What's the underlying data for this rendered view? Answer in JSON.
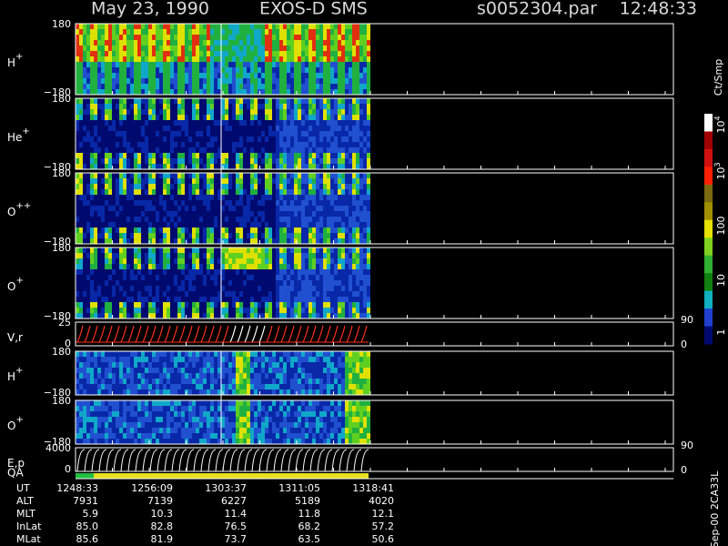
{
  "header": {
    "date": "May 23, 1990",
    "instrument": "EXOS-D SMS",
    "file": "s0052304.par",
    "time": "12:48:33"
  },
  "panels": [
    {
      "label": "H",
      "sup": "+",
      "top": "180",
      "bottom": "−180"
    },
    {
      "label": "He",
      "sup": "+",
      "top": "180",
      "bottom": "−180"
    },
    {
      "label": "O",
      "sup": "++",
      "top": "180",
      "bottom": "−180"
    },
    {
      "label": "O",
      "sup": "+",
      "top": "180",
      "bottom": "−180"
    },
    {
      "label": "V,r",
      "top": "25",
      "bottom": "0",
      "right_top": "90",
      "right_bottom": "0"
    },
    {
      "label": "H",
      "sup": "+",
      "top": "180",
      "bottom": "−180"
    },
    {
      "label": "O",
      "sup": "+",
      "top": "180",
      "bottom": "−180"
    },
    {
      "label": "E,p",
      "top": "4000",
      "bottom": "0",
      "right_top": "90",
      "right_bottom": "0"
    }
  ],
  "qa_label": "QA",
  "colorbar": {
    "unit": "Ct/Smp",
    "labels": [
      {
        "base": "10",
        "exp": "4"
      },
      {
        "base": "10",
        "exp": "3"
      },
      {
        "base": "100"
      },
      {
        "base": "10"
      },
      {
        "base": "1"
      }
    ]
  },
  "footer": {
    "rows": [
      {
        "name": "UT",
        "values": [
          "1248:33",
          "1256:09",
          "1303:37",
          "1311:05",
          "1318:41"
        ]
      },
      {
        "name": "ALT",
        "values": [
          "7931",
          "7139",
          "6227",
          "5189",
          "4020"
        ]
      },
      {
        "name": "MLT",
        "values": [
          "5.9",
          "10.3",
          "11.4",
          "11.8",
          "12.1"
        ]
      },
      {
        "name": "InLat",
        "values": [
          "85.0",
          "82.8",
          "76.5",
          "68.2",
          "57.2"
        ]
      },
      {
        "name": "MLat",
        "values": [
          "85.6",
          "81.9",
          "73.7",
          "63.5",
          "50.6"
        ]
      }
    ],
    "stamp": "Sep-00 2CA33L"
  }
}
